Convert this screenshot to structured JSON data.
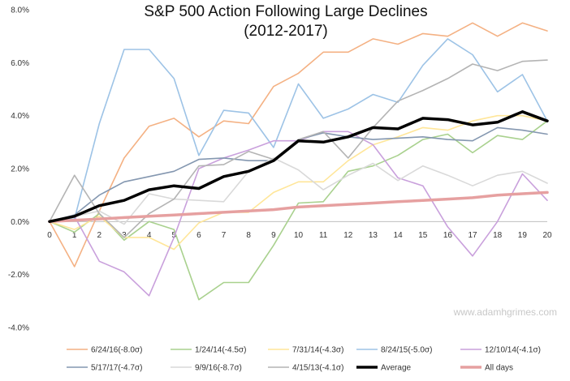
{
  "chart_data": {
    "type": "line",
    "title": "S&P 500 Action Following Large Declines",
    "subtitle": "(2012-2017)",
    "watermark": "www.adamhgrimes.com",
    "xlabel": "",
    "ylabel": "",
    "x": [
      0,
      1,
      2,
      3,
      4,
      5,
      6,
      7,
      8,
      9,
      10,
      11,
      12,
      13,
      14,
      15,
      16,
      17,
      18,
      19,
      20
    ],
    "ylim": [
      -4.0,
      8.0
    ],
    "ytick_values": [
      -4,
      -2,
      0,
      2,
      4,
      6,
      8
    ],
    "ytick_labels": [
      "-4.0%",
      "-2.0%",
      "0.0%",
      "2.0%",
      "4.0%",
      "6.0%",
      "8.0%"
    ],
    "grid": false,
    "legend_position": "bottom",
    "series": [
      {
        "name": "6/24/16(-8.0σ)",
        "color": "#f4b183",
        "width": 1.6,
        "values": [
          0,
          -1.7,
          0.4,
          2.4,
          3.6,
          3.9,
          3.2,
          3.8,
          3.7,
          5.1,
          5.6,
          6.4,
          6.4,
          6.9,
          6.7,
          7.1,
          7.0,
          7.5,
          7.0,
          7.5,
          7.2
        ]
      },
      {
        "name": "1/24/14(-4.5σ)",
        "color": "#a9d18e",
        "width": 1.6,
        "values": [
          0,
          -0.4,
          0.3,
          -0.7,
          0.0,
          -0.3,
          -2.95,
          -2.3,
          -2.3,
          -0.9,
          0.7,
          0.75,
          1.9,
          2.1,
          2.5,
          3.1,
          3.3,
          2.6,
          3.25,
          3.1,
          3.8
        ]
      },
      {
        "name": "7/31/14(-4.3σ)",
        "color": "#ffe699",
        "width": 1.6,
        "values": [
          0,
          -0.3,
          0.2,
          -0.6,
          -0.6,
          -1.05,
          -0.05,
          0.35,
          0.35,
          1.1,
          1.5,
          1.5,
          2.3,
          2.9,
          3.2,
          3.55,
          3.45,
          3.8,
          4.0,
          4.0,
          3.8
        ]
      },
      {
        "name": "8/24/15(-5.0σ)",
        "color": "#9dc3e6",
        "width": 1.6,
        "values": [
          0,
          0.1,
          3.7,
          6.5,
          6.5,
          5.4,
          2.5,
          4.2,
          4.1,
          2.8,
          5.2,
          3.9,
          4.25,
          4.8,
          4.5,
          5.9,
          6.9,
          6.3,
          4.9,
          5.55,
          3.8
        ]
      },
      {
        "name": "12/10/14(-4.1σ)",
        "color": "#c9a0dc",
        "width": 1.6,
        "values": [
          0,
          0.2,
          -1.5,
          -1.9,
          -2.8,
          -0.6,
          2.0,
          2.4,
          2.7,
          3.05,
          3.05,
          3.4,
          3.4,
          2.9,
          1.65,
          1.35,
          -0.2,
          -1.3,
          0.0,
          1.8,
          0.8
        ]
      },
      {
        "name": "5/17/17(-4.7σ)",
        "color": "#8497b0",
        "width": 1.6,
        "values": [
          0,
          0.25,
          1.0,
          1.5,
          1.7,
          1.9,
          2.35,
          2.4,
          2.3,
          2.3,
          3.1,
          3.35,
          3.2,
          3.1,
          3.15,
          3.2,
          3.1,
          3.05,
          3.55,
          3.45,
          3.3
        ]
      },
      {
        "name": "9/9/16(-8.7σ)",
        "color": "#d9d9d9",
        "width": 1.6,
        "values": [
          0,
          0.2,
          0.4,
          -0.1,
          1.05,
          0.85,
          0.8,
          0.75,
          1.9,
          2.4,
          1.95,
          1.2,
          1.75,
          2.2,
          1.55,
          2.1,
          1.75,
          1.35,
          1.75,
          1.9,
          1.45
        ]
      },
      {
        "name": "4/15/13(-4.1σ)",
        "color": "#b4b4b4",
        "width": 1.6,
        "values": [
          0,
          1.75,
          0.3,
          -0.6,
          0.3,
          0.85,
          2.1,
          2.15,
          2.65,
          2.35,
          3.1,
          3.4,
          2.4,
          3.55,
          4.55,
          4.95,
          5.4,
          5.95,
          5.7,
          6.05,
          6.1
        ]
      },
      {
        "name": "Average",
        "color": "#000000",
        "width": 3.5,
        "values": [
          0,
          0.2,
          0.6,
          0.8,
          1.2,
          1.35,
          1.25,
          1.7,
          1.9,
          2.3,
          3.05,
          3.0,
          3.2,
          3.55,
          3.5,
          3.9,
          3.85,
          3.65,
          3.75,
          4.15,
          3.8
        ]
      },
      {
        "name": "All days",
        "color": "#e6a0a0",
        "width": 3.5,
        "values": [
          0,
          0.05,
          0.1,
          0.15,
          0.2,
          0.25,
          0.3,
          0.35,
          0.4,
          0.45,
          0.55,
          0.6,
          0.65,
          0.7,
          0.75,
          0.8,
          0.85,
          0.9,
          1.0,
          1.05,
          1.1
        ]
      }
    ]
  }
}
